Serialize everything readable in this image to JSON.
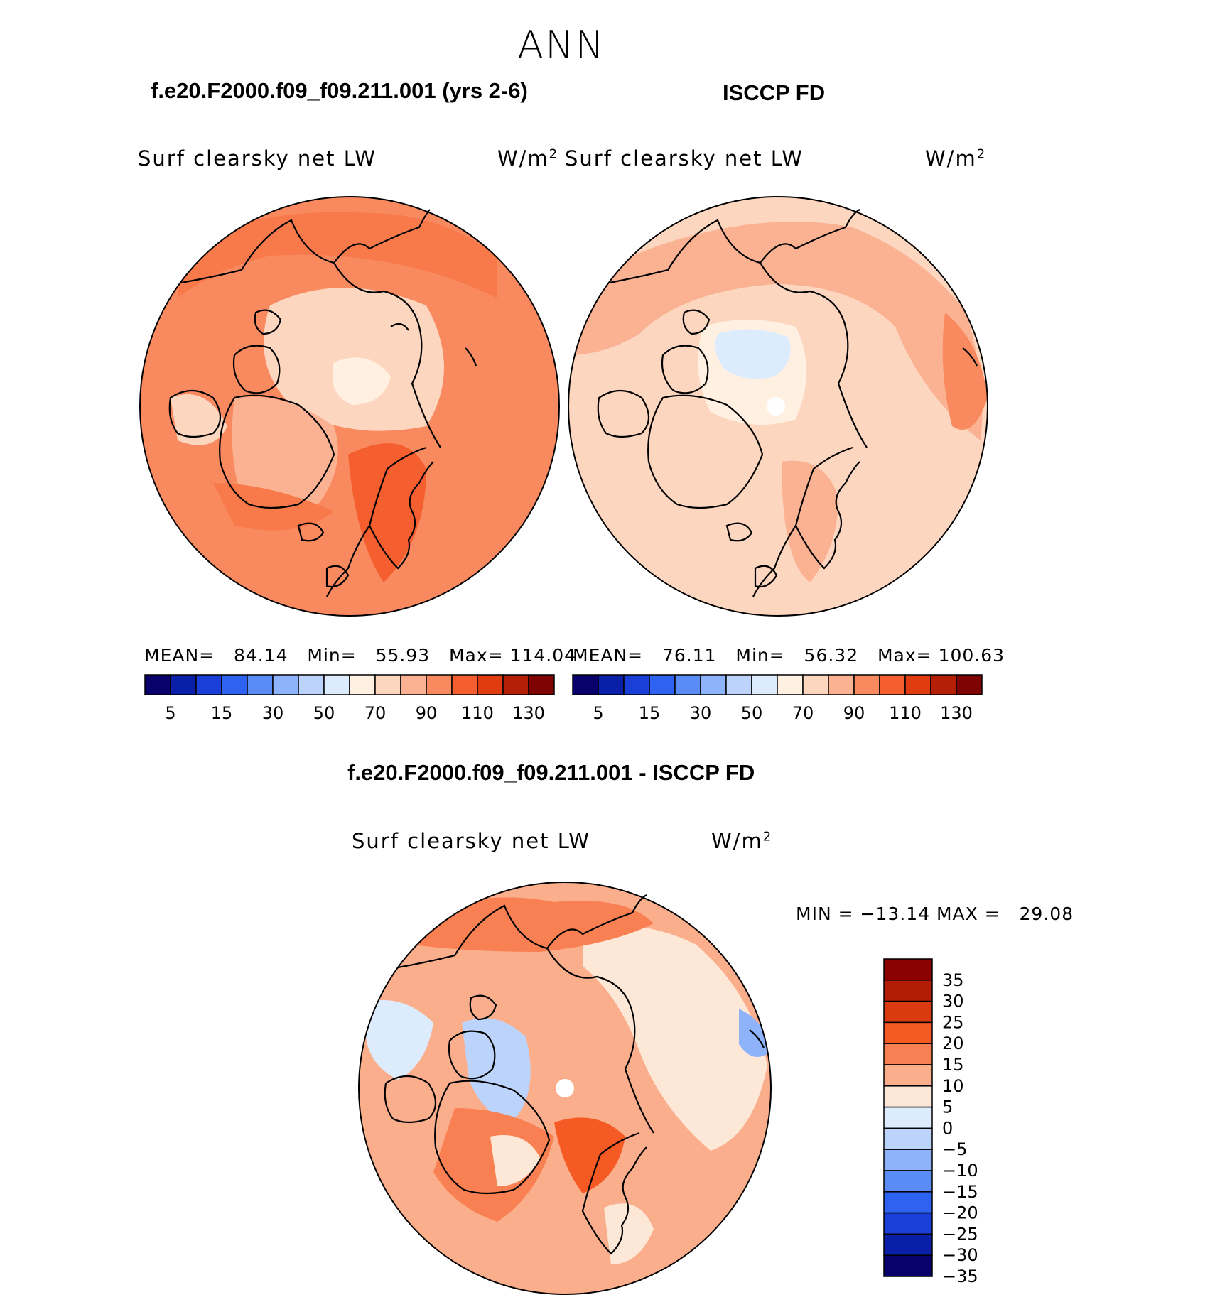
{
  "page_title": "ANN",
  "panels": [
    {
      "id": "model",
      "title": "f.e20.F2000.f09_f09.211.001 (yrs 2-6)",
      "subtitle": "Surf clearsky net LW",
      "units": "W/m",
      "units_exp": "2",
      "mean_label": "MEAN=",
      "mean": "84.14",
      "min_label": "Min=",
      "min": "55.93",
      "max_label": "Max=",
      "max": "114.04"
    },
    {
      "id": "obs",
      "title": "ISCCP FD",
      "subtitle": "Surf clearsky net LW",
      "units": "W/m",
      "units_exp": "2",
      "mean_label": "MEAN=",
      "mean": "76.11",
      "min_label": "Min=",
      "min": "56.32",
      "max_label": "Max=",
      "max": "100.63"
    }
  ],
  "abs_colorbar": {
    "colors": [
      "#08006b",
      "#0a1fa8",
      "#1a3ed8",
      "#2d63f0",
      "#5a8cf5",
      "#8fb3fa",
      "#bcd4fc",
      "#dcecfd",
      "#fff0e2",
      "#fdd6bf",
      "#fbb293",
      "#f98a60",
      "#f55f30",
      "#e03c10",
      "#b51f05",
      "#7e0404"
    ],
    "labels": [
      "5",
      "15",
      "30",
      "50",
      "70",
      "90",
      "110",
      "130"
    ]
  },
  "diff": {
    "title": "f.e20.F2000.f09_f09.211.001 - ISCCP FD",
    "subtitle": "Surf clearsky net LW",
    "units": "W/m",
    "units_exp": "2",
    "min_label": "MIN =",
    "min": "−13.14",
    "max_label": "MAX =",
    "max": "29.08"
  },
  "diff_colorbar": {
    "colors_top_to_bottom": [
      "#8b0000",
      "#b31d05",
      "#d93a10",
      "#f55a25",
      "#f98052",
      "#fbae8b",
      "#fde8d7",
      "#dcecfd",
      "#bcd4fc",
      "#8fb3fa",
      "#5a8cf5",
      "#2d63f0",
      "#1a3ed8",
      "#0a1fa8",
      "#08006b"
    ],
    "labels": [
      "35",
      "30",
      "25",
      "20",
      "15",
      "10",
      "5",
      "0",
      "−5",
      "−10",
      "−15",
      "−20",
      "−25",
      "−30",
      "−35"
    ]
  },
  "colors": {
    "coast": "#000000",
    "pole_hole": "#ffffff"
  }
}
